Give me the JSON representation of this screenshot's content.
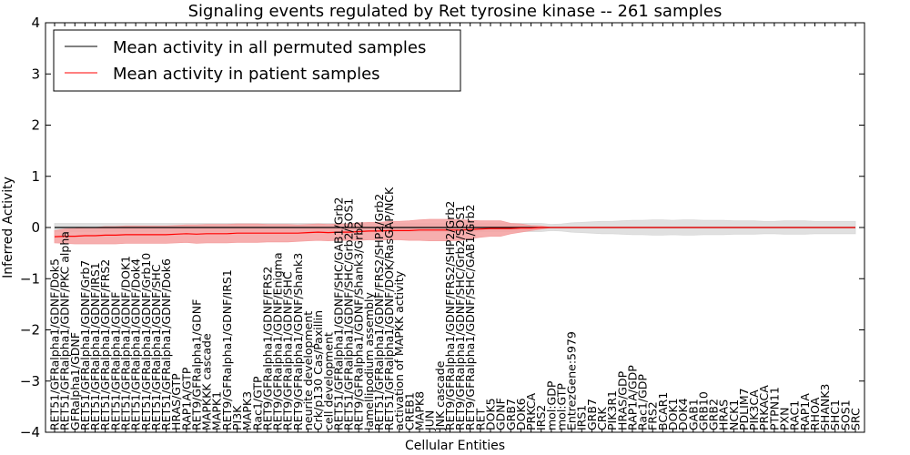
{
  "chart_data": {
    "type": "line",
    "title": "Signaling events regulated by Ret tyrosine kinase -- 261 samples",
    "xlabel": "Cellular Entities",
    "ylabel": "Inferred Activity",
    "ylim": [
      -4,
      4
    ],
    "yticks": [
      "−4",
      "−3",
      "−2",
      "−1",
      "0",
      "1",
      "2",
      "3",
      "4"
    ],
    "yticks_values": [
      -4,
      -3,
      -2,
      -1,
      0,
      1,
      2,
      3,
      4
    ],
    "legend_position": "top-left",
    "categories": [
      "RET51/GFRalpha1/GDNF/Dok5",
      "RET51/GFRalpha1/GDNF/PKC alpha",
      "GFRalpha1/GDNF",
      "RET51/GFRalpha1/GDNF/Grb7",
      "RET51/GFRalpha1/GDNF/IRS1",
      "RET51/GFRalpha1/GDNF/FRS2",
      "RET51/GFRalpha1/GDNF",
      "RET51/GFRalpha1/GDNF/DOK1",
      "RET51/GFRalpha1/GDNF/Dok4",
      "RET51/GFRalpha1/GDNF/Grb10",
      "RET51/GFRalpha1/GDNF/SHC",
      "RET51/GFRalpha1/GDNF/Dok6",
      "HRAS/GTP",
      "RAP1A/GTP",
      "RET9/GFRalpha1/GDNF",
      "MAPKKK cascade",
      "MAPK1",
      "RET9/GFRalpha1/GDNF/IRS1",
      "PI3K",
      "MAPK3",
      "Rac1/GTP",
      "RET9/GFRalpha1/GDNF/FRS2",
      "RET9/GFRalpha1/GDNF/Enigma",
      "RET9/GFRalpha1/GDNF/SHC",
      "RET9/GFRalpha1/GDNF/Shank3",
      "neurite development",
      "Crk/p130 Cas/Paxillin",
      "cell development",
      "RET51/GFRalpha1/GDNF/SHC/GAB1/Grb2",
      "RET51/GFRalpha1/GDNF/SHC/Grb2/SOS1",
      "RET9/GFRalpha1/GDNF/Shank3/Grb2",
      "lamellipodium assembly",
      "RET51/GFRalpha1/GDNF/FRS2/SHP2/Grb2",
      "RET51/GFRalpha1/GDNF/DOK/RasGAP/NCK",
      "activation of MAPKK activity",
      "CREB1",
      "MAPK8",
      "JUN",
      "JNK cascade",
      "RET9/GFRalpha1/GDNF/FRS2/SHP2/Grb2",
      "RET9/GFRalpha1/GDNF/SHC/Grb2/SOS1",
      "RET9/GFRalpha1/GDNF/SHC/GAB1/Grb2",
      "RET",
      "DOK5",
      "GDNF",
      "GRB7",
      "DOK6",
      "PRKCA",
      "IRS2",
      "mol:GDP",
      "mol:GTP",
      "EntrezGene:5979",
      "IRS1",
      "GRB7",
      "CRK",
      "PIK3R1",
      "HRAS/GDP",
      "RAP1A/GDP",
      "Rac1/GDP",
      "FRS2",
      "BCAR1",
      "DOK1",
      "DOK4",
      "GAB1",
      "GRB10",
      "GRB2",
      "HRAS",
      "NCK1",
      "PDLIM7",
      "PIK3CA",
      "PRKACA",
      "PTPN11",
      "PXN",
      "RAC1",
      "RAP1A",
      "RHOA",
      "SHANK3",
      "SHC1",
      "SOS1",
      "SRC"
    ],
    "series": [
      {
        "name": "Mean activity in all permuted samples",
        "color": "#000000",
        "band_color": "#d8d8d8",
        "values": [
          0,
          0,
          0,
          0,
          0,
          0,
          0,
          0,
          0,
          0,
          0,
          0,
          0,
          0,
          0,
          0,
          0,
          0,
          0,
          0,
          0,
          0,
          0,
          0,
          0,
          0,
          0,
          0,
          0,
          0,
          0,
          0,
          0,
          0,
          0,
          0,
          0,
          0,
          0,
          0,
          0,
          0,
          0,
          0,
          0,
          0,
          0,
          0,
          0,
          0,
          0,
          0,
          0,
          0,
          0,
          0,
          0,
          0,
          0,
          0,
          0,
          0,
          0,
          0,
          0,
          0,
          0,
          0,
          0,
          0,
          0,
          0,
          0,
          0,
          0,
          0,
          0,
          0,
          0,
          0
        ],
        "band": [
          0.08,
          0.08,
          0.08,
          0.08,
          0.08,
          0.08,
          0.08,
          0.08,
          0.08,
          0.08,
          0.08,
          0.08,
          0.08,
          0.08,
          0.08,
          0.08,
          0.08,
          0.08,
          0.08,
          0.08,
          0.08,
          0.08,
          0.08,
          0.08,
          0.08,
          0.08,
          0.08,
          0.08,
          0.08,
          0.08,
          0.08,
          0.08,
          0.08,
          0.08,
          0.08,
          0.08,
          0.08,
          0.08,
          0.08,
          0.08,
          0.08,
          0.08,
          0.08,
          0.08,
          0.08,
          0.08,
          0.08,
          0.08,
          0.08,
          0.06,
          0.07,
          0.09,
          0.1,
          0.11,
          0.12,
          0.12,
          0.13,
          0.14,
          0.14,
          0.15,
          0.15,
          0.14,
          0.15,
          0.15,
          0.14,
          0.14,
          0.14,
          0.13,
          0.13,
          0.13,
          0.12,
          0.12,
          0.13,
          0.13,
          0.13,
          0.12,
          0.12,
          0.12,
          0.12,
          0.12
        ]
      },
      {
        "name": "Mean activity in patient samples",
        "color": "#ff0000",
        "band_color": "#f4a0a0",
        "values": [
          -0.18,
          -0.17,
          -0.17,
          -0.16,
          -0.16,
          -0.15,
          -0.15,
          -0.14,
          -0.14,
          -0.14,
          -0.14,
          -0.14,
          -0.13,
          -0.12,
          -0.13,
          -0.12,
          -0.12,
          -0.12,
          -0.11,
          -0.11,
          -0.11,
          -0.11,
          -0.11,
          -0.11,
          -0.11,
          -0.1,
          -0.09,
          -0.1,
          -0.09,
          -0.09,
          -0.08,
          -0.07,
          -0.07,
          -0.06,
          -0.06,
          -0.06,
          -0.05,
          -0.05,
          -0.05,
          -0.05,
          -0.05,
          -0.04,
          -0.03,
          -0.02,
          -0.02,
          -0.02,
          -0.01,
          -0.01,
          0,
          0,
          0,
          0,
          0,
          0,
          0,
          0,
          0,
          0,
          0,
          0,
          0,
          0,
          0,
          0,
          0,
          0,
          0,
          0,
          0,
          0,
          0,
          0,
          0,
          0,
          0,
          0,
          0,
          0,
          0,
          0
        ],
        "band": [
          0.12,
          0.14,
          0.15,
          0.16,
          0.16,
          0.17,
          0.17,
          0.17,
          0.17,
          0.17,
          0.17,
          0.17,
          0.17,
          0.17,
          0.18,
          0.18,
          0.18,
          0.18,
          0.18,
          0.18,
          0.18,
          0.17,
          0.17,
          0.17,
          0.16,
          0.16,
          0.16,
          0.16,
          0.16,
          0.16,
          0.17,
          0.17,
          0.17,
          0.18,
          0.18,
          0.19,
          0.2,
          0.21,
          0.21,
          0.21,
          0.2,
          0.18,
          0.16,
          0.15,
          0.15,
          0.1,
          0.08,
          0.05,
          0.03,
          0,
          0,
          0,
          0,
          0,
          0,
          0,
          0,
          0,
          0,
          0,
          0,
          0,
          0,
          0,
          0,
          0,
          0,
          0,
          0,
          0,
          0,
          0,
          0,
          0,
          0,
          0,
          0,
          0,
          0,
          0
        ]
      }
    ]
  }
}
